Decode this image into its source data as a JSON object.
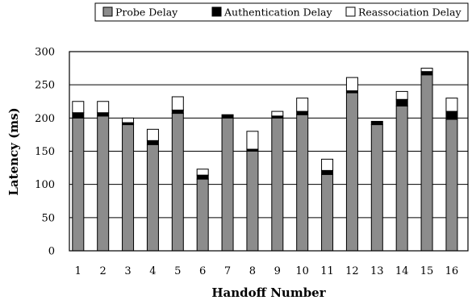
{
  "chart_data": {
    "type": "bar",
    "stacked": true,
    "title": "",
    "xlabel": "Handoff Number",
    "ylabel": "Latency (ms)",
    "ylim": [
      0,
      300
    ],
    "yticks": [
      0,
      50,
      100,
      150,
      200,
      250,
      300
    ],
    "grid": true,
    "legend_position": "top",
    "categories": [
      "1",
      "2",
      "3",
      "4",
      "5",
      "6",
      "7",
      "8",
      "9",
      "10",
      "11",
      "12",
      "13",
      "14",
      "15",
      "16"
    ],
    "series": [
      {
        "name": "Probe Delay",
        "color": "#8c8c8c",
        "values": [
          200,
          203,
          190,
          160,
          207,
          108,
          200,
          150,
          200,
          205,
          115,
          238,
          190,
          218,
          265,
          198
        ]
      },
      {
        "name": "Authentication Delay",
        "color": "#000000",
        "values": [
          8,
          5,
          3,
          6,
          5,
          6,
          5,
          3,
          3,
          5,
          6,
          3,
          5,
          10,
          5,
          12
        ]
      },
      {
        "name": "Reassociation Delay",
        "color": "#ffffff",
        "values": [
          17,
          17,
          7,
          17,
          20,
          9,
          0,
          27,
          7,
          20,
          17,
          20,
          0,
          12,
          5,
          20
        ]
      }
    ]
  }
}
